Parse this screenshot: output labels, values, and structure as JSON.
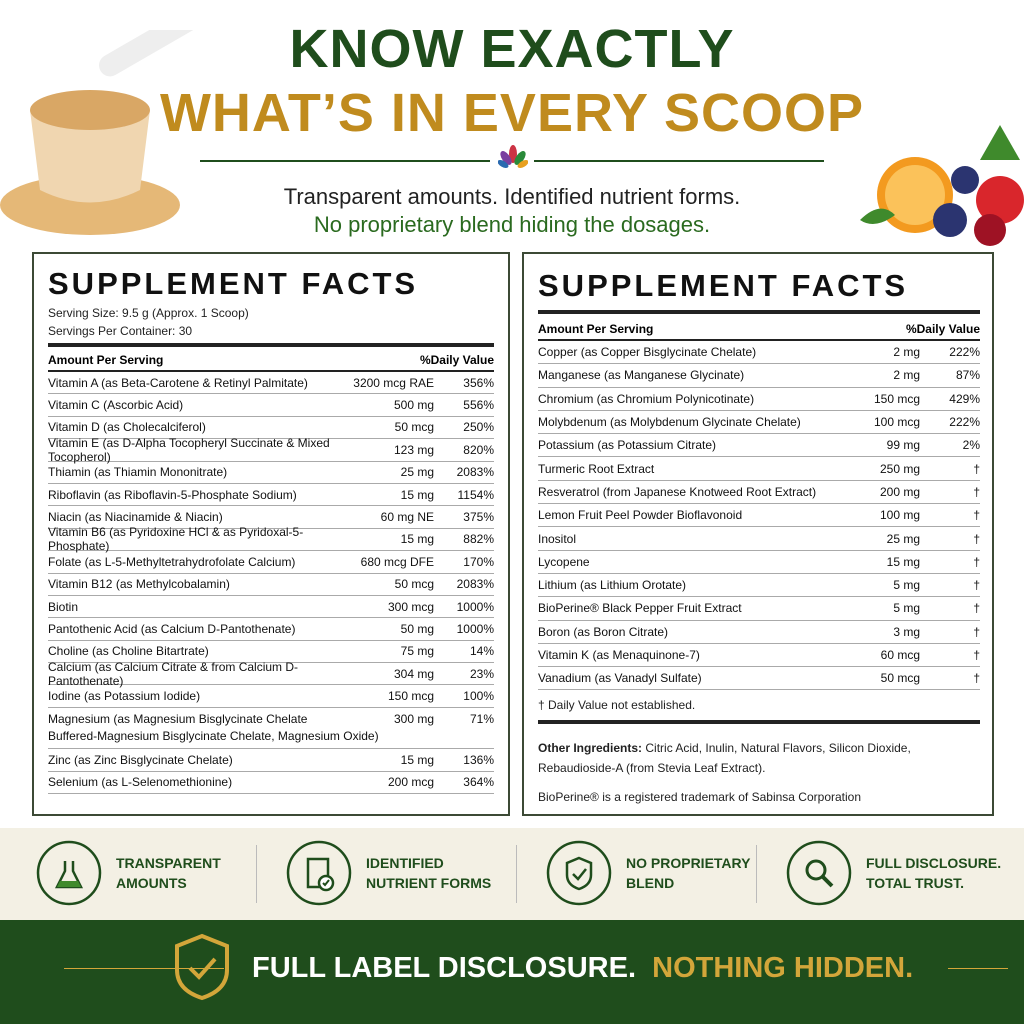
{
  "header": {
    "title_line1": "KNOW EXACTLY",
    "title_line2": "WHAT’S IN EVERY SCOOP",
    "subtitle_line1": "Transparent amounts. Identified nutrient forms.",
    "subtitle_line2": "No proprietary blend hiding the dosages."
  },
  "left_panel": {
    "title": "SUPPLEMENT FACTS",
    "serving_size": "Serving Size: 9.5 g (Approx. 1 Scoop)",
    "servings_per_container": "Servings Per Container: 30",
    "column_header": [
      "Amount Per Serving",
      "%Daily Value"
    ],
    "rows": [
      [
        "Vitamin A (as Beta-Carotene & Retinyl Palmitate)",
        "3200 mcg RAE",
        "356%"
      ],
      [
        "Vitamin C (Ascorbic Acid)",
        "500 mg",
        "556%"
      ],
      [
        "Vitamin D (as Cholecalciferol)",
        "50 mcg",
        "250%"
      ],
      [
        "Vitamin E (as D-Alpha Tocopheryl Succinate & Mixed Tocopherol)",
        "123 mg",
        "820%"
      ],
      [
        "Thiamin (as Thiamin Mononitrate)",
        "25 mg",
        "2083%"
      ],
      [
        "Riboflavin (as Riboflavin-5-Phosphate Sodium)",
        "15 mg",
        "1154%"
      ],
      [
        "Niacin (as Niacinamide & Niacin)",
        "60 mg NE",
        "375%"
      ],
      [
        "Vitamin B6 (as Pyridoxine HCl & as Pyridoxal-5-Phosphate)",
        "15 mg",
        "882%"
      ],
      [
        "Folate (as L-5-Methyltetrahydrofolate Calcium)",
        "680 mcg DFE",
        "170%"
      ],
      [
        "Vitamin B12 (as Methylcobalamin)",
        "50 mcg",
        "2083%"
      ],
      [
        "Biotin",
        "300 mcg",
        "1000%"
      ],
      [
        "Pantothenic Acid (as Calcium D-Pantothenate)",
        "50 mg",
        "1000%"
      ],
      [
        "Choline (as Choline Bitartrate)",
        "75 mg",
        "14%"
      ],
      [
        "Calcium (as Calcium Citrate & from Calcium D-Pantothenate)",
        "304 mg",
        "23%"
      ],
      [
        "Iodine (as Potassium Iodide)",
        "150 mcg",
        "100%"
      ],
      [
        "Magnesium (as Magnesium Bisglycinate Chelate",
        "300 mg",
        "71%",
        "Buffered-Magnesium Bisglycinate Chelate, Magnesium Oxide)"
      ],
      [
        "Zinc (as Zinc Bisglycinate Chelate)",
        "15 mg",
        "136%"
      ],
      [
        "Selenium (as L-Selenomethionine)",
        "200 mcg",
        "364%"
      ]
    ]
  },
  "right_panel": {
    "title": "SUPPLEMENT FACTS",
    "column_header": [
      "Amount Per Serving",
      "%Daily Value"
    ],
    "rows": [
      [
        "Copper (as Copper Bisglycinate Chelate)",
        "2 mg",
        "222%"
      ],
      [
        "Manganese (as Manganese Glycinate)",
        "2 mg",
        "87%"
      ],
      [
        "Chromium (as Chromium Polynicotinate)",
        "150 mcg",
        "429%"
      ],
      [
        "Molybdenum (as Molybdenum Glycinate Chelate)",
        "100 mcg",
        "222%"
      ],
      [
        "Potassium (as Potassium Citrate)",
        "99 mg",
        "2%"
      ],
      [
        "Turmeric Root Extract",
        "250 mg",
        "†"
      ],
      [
        "Resveratrol (from Japanese Knotweed Root Extract)",
        "200 mg",
        "†"
      ],
      [
        "Lemon Fruit Peel Powder Bioflavonoid",
        "100 mg",
        "†"
      ],
      [
        "Inositol",
        "25 mg",
        "†"
      ],
      [
        "Lycopene",
        "15 mg",
        "†"
      ],
      [
        "Lithium (as Lithium Orotate)",
        "5 mg",
        "†"
      ],
      [
        "BioPerine® Black Pepper Fruit Extract",
        "5 mg",
        "†"
      ],
      [
        "Boron (as Boron Citrate)",
        "3 mg",
        "†"
      ],
      [
        "Vitamin K (as Menaquinone-7)",
        "60 mcg",
        "†"
      ],
      [
        "Vanadium (as Vanadyl Sulfate)",
        "50 mcg",
        "†"
      ]
    ],
    "footnote": "† Daily Value not established.",
    "other_ingredients_label": "Other Ingredients:",
    "other_ingredients": "Citric Acid, Inulin, Natural Flavors, Silicon Dioxide, Rebaudioside-A (from Stevia Leaf Extract).",
    "trademark": "BioPerine® is a registered trademark of Sabinsa Corporation"
  },
  "features": [
    [
      "TRANSPARENT",
      "AMOUNTS"
    ],
    [
      "IDENTIFIED",
      "NUTRIENT FORMS"
    ],
    [
      "NO PROPRIETARY",
      "BLEND"
    ],
    [
      "FULL DISCLOSURE.",
      "TOTAL TRUST."
    ]
  ],
  "banner": {
    "text_white": "FULL LABEL DISCLOSURE.",
    "text_gold": "NOTHING HIDDEN."
  }
}
